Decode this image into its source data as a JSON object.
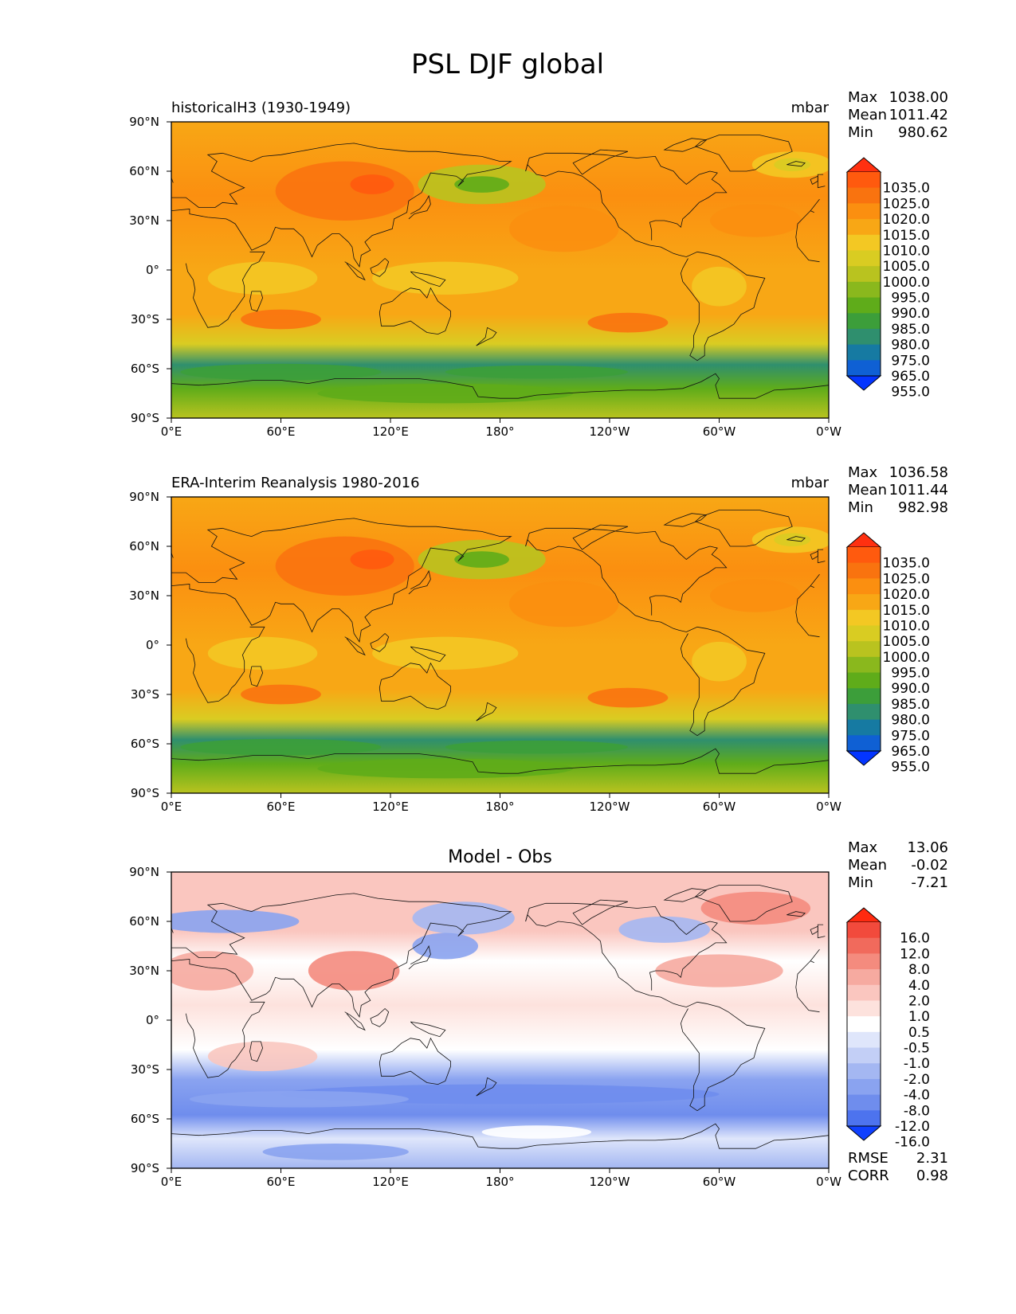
{
  "title": "PSL DJF global",
  "chart_data": {
    "type": "heatmap",
    "title": "PSL DJF global",
    "x_ticks": [
      "0°E",
      "60°E",
      "120°E",
      "180°",
      "120°W",
      "60°W",
      "0°W"
    ],
    "y_ticks": [
      "90°N",
      "60°N",
      "30°N",
      "0°",
      "30°S",
      "60°S",
      "90°S"
    ],
    "xlim": [
      0,
      360
    ],
    "ylim": [
      -90,
      90
    ],
    "panels": [
      {
        "title": "historicalH3 (1930-1949)",
        "units": "mbar",
        "stats": [
          {
            "label": "Max",
            "value": "1038.00"
          },
          {
            "label": "Mean",
            "value": "1011.42"
          },
          {
            "label": "Min",
            "value": "980.62"
          }
        ],
        "colorbar_labels": [
          "1035.0",
          "1025.0",
          "1020.0",
          "1015.0",
          "1010.0",
          "1005.0",
          "1000.0",
          "995.0",
          "990.0",
          "985.0",
          "980.0",
          "975.0",
          "965.0",
          "955.0"
        ],
        "colorbar_colors": [
          "#ff3010",
          "#ff5a0e",
          "#f9730f",
          "#fb8f10",
          "#f8a715",
          "#f3c823",
          "#d9cc22",
          "#b9c31f",
          "#8ab81d",
          "#5fac1a",
          "#3c9e3a",
          "#2f8f6e",
          "#167aa2",
          "#0f60d4",
          "#0435ff"
        ]
      },
      {
        "title": "ERA-Interim Reanalysis 1980-2016",
        "units": "mbar",
        "stats": [
          {
            "label": "Max",
            "value": "1036.58"
          },
          {
            "label": "Mean",
            "value": "1011.44"
          },
          {
            "label": "Min",
            "value": "982.98"
          }
        ],
        "colorbar_labels": [
          "1035.0",
          "1025.0",
          "1020.0",
          "1015.0",
          "1010.0",
          "1005.0",
          "1000.0",
          "995.0",
          "990.0",
          "985.0",
          "980.0",
          "975.0",
          "965.0",
          "955.0"
        ],
        "colorbar_colors": [
          "#ff3010",
          "#ff5a0e",
          "#f9730f",
          "#fb8f10",
          "#f8a715",
          "#f3c823",
          "#d9cc22",
          "#b9c31f",
          "#8ab81d",
          "#5fac1a",
          "#3c9e3a",
          "#2f8f6e",
          "#167aa2",
          "#0f60d4",
          "#0435ff"
        ]
      },
      {
        "title": "Model - Obs",
        "units": "",
        "stats": [
          {
            "label": "Max",
            "value": "13.06"
          },
          {
            "label": "Mean",
            "value": "-0.02"
          },
          {
            "label": "Min",
            "value": "-7.21"
          }
        ],
        "extra_stats": [
          {
            "label": "RMSE",
            "value": "2.31"
          },
          {
            "label": "CORR",
            "value": "0.98"
          }
        ],
        "colorbar_labels": [
          "16.0",
          "12.0",
          "8.0",
          "4.0",
          "2.0",
          "1.0",
          "0.5",
          "-0.5",
          "-1.0",
          "-2.0",
          "-4.0",
          "-8.0",
          "-12.0",
          "-16.0"
        ],
        "colorbar_colors": [
          "#ff2a10",
          "#f24a3c",
          "#f16a5c",
          "#f48b7e",
          "#f6aaa0",
          "#fac6bf",
          "#fde2dd",
          "#ffffff",
          "#dfe6fb",
          "#c3cff6",
          "#a4b7f2",
          "#8aa3f0",
          "#6f8ded",
          "#4d73ee",
          "#0f40ff"
        ]
      }
    ]
  }
}
